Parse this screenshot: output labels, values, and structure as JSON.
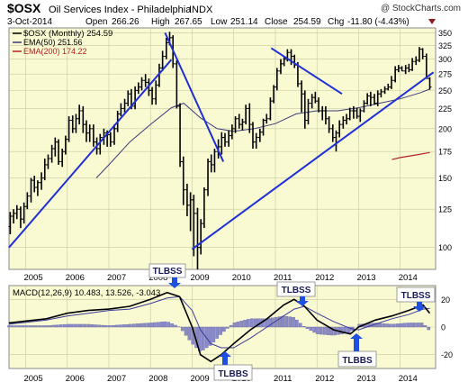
{
  "header": {
    "symbol": "$OSX",
    "name": "Oil Services Index - Philadelphia",
    "exchange": "INDX",
    "watermark": "@ StockCharts.com",
    "date": "3-Oct-2014",
    "open_label": "Open",
    "open": "266.26",
    "high_label": "High",
    "high": "267.65",
    "low_label": "Low",
    "low": "251.14",
    "close_label": "Close",
    "close": "254.59",
    "chg_label": "Chg",
    "chg": "-11.80 (-4.43%)"
  },
  "legend": {
    "price": "$OSX (Monthly) 254.59",
    "ema50": "EMA(50) 251.56",
    "ema200": "EMA(200) 174.22"
  },
  "colors": {
    "plot_bg": "#fafad2",
    "grid": "#c8c8a0",
    "trendline": "#1f2fd6",
    "ema50": "#3a3a7a",
    "ema200": "#b22222",
    "macd": "#000000",
    "signal": "#3a3a9a",
    "hist": "#8a8ac8",
    "callout_bg": "#ffffff",
    "arrow": "#1f4fe0"
  },
  "chart_data": [
    {
      "type": "line",
      "title": "$OSX Oil Services Index - Philadelphia INDX",
      "style": "monthly OHLC bars",
      "x_ticks": [
        "2005",
        "2006",
        "2007",
        "2008",
        "2009",
        "2010",
        "2011",
        "2012",
        "2013",
        "2014"
      ],
      "y_ticks": [
        100,
        125,
        150,
        175,
        200,
        225,
        250,
        275,
        300,
        325,
        350
      ],
      "ylim": [
        88,
        360
      ],
      "y_scale": "log",
      "xlim": [
        2004.6,
        2014.85
      ],
      "grid": true,
      "legend_position": "top-left",
      "series": [
        {
          "name": "$OSX (Monthly) 254.59",
          "kind": "ohlc",
          "x": [
            2004.63,
            2004.71,
            2004.79,
            2004.88,
            2004.96,
            2005.04,
            2005.13,
            2005.21,
            2005.29,
            2005.38,
            2005.46,
            2005.54,
            2005.63,
            2005.71,
            2005.79,
            2005.88,
            2005.96,
            2006.04,
            2006.13,
            2006.21,
            2006.29,
            2006.38,
            2006.46,
            2006.54,
            2006.63,
            2006.71,
            2006.79,
            2006.88,
            2006.96,
            2007.04,
            2007.13,
            2007.21,
            2007.29,
            2007.38,
            2007.46,
            2007.54,
            2007.63,
            2007.71,
            2007.79,
            2007.88,
            2007.96,
            2008.04,
            2008.13,
            2008.21,
            2008.29,
            2008.38,
            2008.46,
            2008.54,
            2008.63,
            2008.71,
            2008.79,
            2008.88,
            2008.96,
            2009.04,
            2009.13,
            2009.21,
            2009.29,
            2009.38,
            2009.46,
            2009.54,
            2009.63,
            2009.71,
            2009.79,
            2009.88,
            2009.96,
            2010.04,
            2010.13,
            2010.21,
            2010.29,
            2010.38,
            2010.46,
            2010.54,
            2010.63,
            2010.71,
            2010.79,
            2010.88,
            2010.96,
            2011.04,
            2011.13,
            2011.21,
            2011.29,
            2011.38,
            2011.46,
            2011.54,
            2011.63,
            2011.71,
            2011.79,
            2011.88,
            2011.96,
            2012.04,
            2012.13,
            2012.21,
            2012.29,
            2012.38,
            2012.46,
            2012.54,
            2012.63,
            2012.71,
            2012.79,
            2012.88,
            2012.96,
            2013.04,
            2013.13,
            2013.21,
            2013.29,
            2013.38,
            2013.46,
            2013.54,
            2013.63,
            2013.71,
            2013.79,
            2013.88,
            2013.96,
            2014.04,
            2014.13,
            2014.21,
            2014.29,
            2014.38,
            2014.46,
            2014.54,
            2014.63,
            2014.71
          ],
          "open": [
            113,
            120,
            122,
            125,
            118,
            127,
            135,
            148,
            142,
            146,
            150,
            162,
            168,
            178,
            185,
            165,
            175,
            188,
            210,
            200,
            212,
            222,
            205,
            195,
            200,
            185,
            178,
            190,
            195,
            193,
            185,
            200,
            218,
            225,
            232,
            245,
            228,
            250,
            255,
            265,
            262,
            250,
            238,
            258,
            285,
            305,
            330,
            340,
            292,
            228,
            165,
            140,
            128,
            132,
            122,
            100,
            115,
            140,
            165,
            162,
            175,
            180,
            190,
            185,
            192,
            200,
            212,
            205,
            208,
            225,
            205,
            185,
            190,
            196,
            210,
            212,
            235,
            255,
            280,
            292,
            300,
            312,
            305,
            290,
            260,
            245,
            210,
            232,
            240,
            235,
            222,
            222,
            212,
            200,
            190,
            195,
            205,
            210,
            212,
            222,
            222,
            215,
            222,
            232,
            242,
            240,
            232,
            245,
            248,
            252,
            255,
            265,
            282,
            285,
            280,
            285,
            282,
            296,
            298,
            318,
            305,
            268
          ],
          "high": [
            123,
            125,
            128,
            127,
            130,
            138,
            150,
            152,
            148,
            155,
            168,
            172,
            182,
            190,
            188,
            178,
            192,
            215,
            216,
            218,
            230,
            228,
            210,
            205,
            205,
            190,
            194,
            200,
            198,
            196,
            205,
            222,
            232,
            238,
            250,
            252,
            256,
            262,
            270,
            275,
            268,
            255,
            265,
            292,
            315,
            340,
            352,
            345,
            298,
            232,
            170,
            145,
            138,
            136,
            126,
            118,
            142,
            168,
            172,
            178,
            188,
            196,
            195,
            198,
            205,
            215,
            218,
            212,
            230,
            232,
            208,
            195,
            200,
            212,
            218,
            240,
            258,
            285,
            300,
            305,
            318,
            318,
            308,
            295,
            265,
            250,
            238,
            245,
            248,
            240,
            228,
            228,
            215,
            205,
            198,
            210,
            215,
            218,
            226,
            228,
            226,
            225,
            236,
            246,
            248,
            245,
            250,
            252,
            256,
            260,
            272,
            288,
            290,
            288,
            290,
            292,
            302,
            305,
            322,
            320,
            310,
            270
          ],
          "low": [
            108,
            115,
            118,
            112,
            115,
            125,
            130,
            138,
            135,
            140,
            148,
            158,
            164,
            170,
            162,
            160,
            172,
            185,
            195,
            195,
            205,
            195,
            185,
            185,
            180,
            172,
            172,
            182,
            180,
            180,
            182,
            196,
            215,
            220,
            228,
            224,
            224,
            245,
            250,
            255,
            242,
            230,
            230,
            255,
            280,
            300,
            325,
            285,
            225,
            160,
            128,
            120,
            110,
            95,
            88,
            96,
            112,
            135,
            155,
            155,
            168,
            172,
            180,
            180,
            188,
            195,
            200,
            198,
            205,
            195,
            178,
            178,
            185,
            192,
            206,
            210,
            232,
            250,
            275,
            288,
            296,
            290,
            285,
            255,
            220,
            200,
            205,
            225,
            232,
            220,
            210,
            205,
            195,
            185,
            175,
            190,
            200,
            205,
            210,
            212,
            212,
            208,
            220,
            230,
            228,
            230,
            228,
            240,
            245,
            250,
            252,
            262,
            278,
            280,
            275,
            278,
            280,
            290,
            295,
            300,
            270,
            251
          ],
          "close": [
            120,
            122,
            125,
            118,
            127,
            135,
            148,
            142,
            146,
            150,
            162,
            168,
            178,
            185,
            165,
            175,
            188,
            210,
            200,
            212,
            222,
            205,
            195,
            200,
            185,
            178,
            190,
            195,
            193,
            185,
            200,
            218,
            225,
            232,
            245,
            228,
            250,
            255,
            265,
            262,
            250,
            238,
            258,
            285,
            305,
            330,
            340,
            292,
            228,
            165,
            140,
            128,
            132,
            122,
            100,
            115,
            140,
            165,
            162,
            175,
            180,
            190,
            185,
            192,
            200,
            212,
            205,
            208,
            225,
            205,
            185,
            190,
            196,
            210,
            212,
            235,
            255,
            280,
            292,
            300,
            312,
            305,
            290,
            260,
            245,
            210,
            232,
            240,
            235,
            222,
            222,
            212,
            200,
            190,
            195,
            205,
            210,
            212,
            222,
            222,
            215,
            222,
            232,
            242,
            240,
            232,
            245,
            248,
            252,
            255,
            265,
            282,
            285,
            280,
            285,
            282,
            296,
            298,
            318,
            305,
            268,
            255
          ]
        },
        {
          "name": "EMA(50) 251.56",
          "kind": "line",
          "x": [
            2006.7,
            2007.0,
            2007.5,
            2008.0,
            2008.5,
            2008.8,
            2009.2,
            2009.6,
            2010.0,
            2010.5,
            2011.0,
            2011.5,
            2012.0,
            2012.5,
            2013.0,
            2013.5,
            2014.0,
            2014.5,
            2014.71
          ],
          "y": [
            150,
            162,
            185,
            205,
            226,
            232,
            213,
            200,
            197,
            200,
            206,
            218,
            222,
            222,
            226,
            232,
            238,
            247,
            252
          ]
        },
        {
          "name": "EMA(200) 174.22",
          "kind": "line",
          "x": [
            2013.8,
            2014.0,
            2014.3,
            2014.71
          ],
          "y": [
            167,
            169,
            171,
            174
          ]
        }
      ],
      "trendlines": [
        {
          "x": [
            2004.6,
            2008.5
          ],
          "y": [
            100,
            299
          ]
        },
        {
          "x": [
            2008.35,
            2009.75
          ],
          "y": [
            350,
            165
          ]
        },
        {
          "x": [
            2009.0,
            2014.8
          ],
          "y": [
            99,
            278
          ]
        },
        {
          "x": [
            2010.9,
            2012.6
          ],
          "y": [
            320,
            245
          ]
        }
      ]
    },
    {
      "type": "line",
      "title": "MACD(12,26,9) 10.483, 13.526, -3.043",
      "x_ticks": [
        "2005",
        "2006",
        "2007",
        "2008",
        "2009",
        "2010",
        "2011",
        "2012",
        "2013",
        "2014"
      ],
      "y_ticks": [
        -20,
        0,
        20
      ],
      "ylim": [
        -30,
        30
      ],
      "xlim": [
        2004.6,
        2014.85
      ],
      "legend_position": "top-left",
      "series": [
        {
          "name": "MACD(12,26,9)",
          "x": [
            2004.6,
            2005.5,
            2006.0,
            2006.5,
            2007.0,
            2007.5,
            2008.0,
            2008.4,
            2008.7,
            2009.0,
            2009.2,
            2009.45,
            2009.7,
            2010.0,
            2010.4,
            2010.8,
            2011.2,
            2011.45,
            2011.7,
            2012.0,
            2012.4,
            2012.8,
            2013.0,
            2013.4,
            2013.8,
            2014.2,
            2014.55,
            2014.71
          ],
          "y": [
            3,
            6,
            10,
            12,
            13,
            15,
            20,
            25,
            22,
            0,
            -20,
            -25,
            -20,
            -12,
            -2,
            6,
            16,
            20,
            15,
            5,
            -2,
            -5,
            0,
            5,
            8,
            12,
            16,
            10
          ]
        },
        {
          "name": "Signal",
          "x": [
            2004.6,
            2005.5,
            2006.0,
            2006.5,
            2007.0,
            2007.5,
            2008.0,
            2008.4,
            2008.7,
            2009.0,
            2009.2,
            2009.45,
            2009.7,
            2010.0,
            2010.4,
            2010.8,
            2011.2,
            2011.45,
            2011.7,
            2012.0,
            2012.4,
            2012.8,
            2013.0,
            2013.4,
            2013.8,
            2014.2,
            2014.55,
            2014.71
          ],
          "y": [
            2,
            5,
            8,
            10,
            12,
            13,
            17,
            21,
            22,
            12,
            -2,
            -12,
            -15,
            -15,
            -8,
            0,
            8,
            13,
            15,
            10,
            4,
            -1,
            -2,
            2,
            6,
            9,
            13,
            13.5
          ]
        },
        {
          "name": "Histogram",
          "kind": "bar",
          "x": [
            2004.6,
            2005.5,
            2006.0,
            2006.5,
            2007.0,
            2007.5,
            2008.0,
            2008.4,
            2008.7,
            2009.0,
            2009.2,
            2009.45,
            2009.7,
            2010.0,
            2010.4,
            2010.8,
            2011.2,
            2011.45,
            2011.7,
            2012.0,
            2012.4,
            2012.8,
            2013.0,
            2013.4,
            2013.8,
            2014.2,
            2014.55,
            2014.71
          ],
          "y": [
            1,
            1,
            2,
            2,
            1,
            2,
            3,
            4,
            0,
            -12,
            -18,
            -13,
            -5,
            3,
            6,
            6,
            8,
            7,
            0,
            -5,
            -6,
            -4,
            2,
            3,
            2,
            3,
            3,
            -3
          ]
        }
      ]
    }
  ],
  "annotations": [
    {
      "label": "TLBSS",
      "panel": "price",
      "x": 2008.6
    },
    {
      "label": "TLBSS",
      "panel": "macd",
      "x": 2011.7
    },
    {
      "label": "TLBSS",
      "panel": "macd",
      "x": 2014.5
    },
    {
      "label": "TLBBS",
      "panel": "macd",
      "x": 2009.75
    },
    {
      "label": "TLBBS",
      "panel": "macd",
      "x": 2013.0
    }
  ]
}
